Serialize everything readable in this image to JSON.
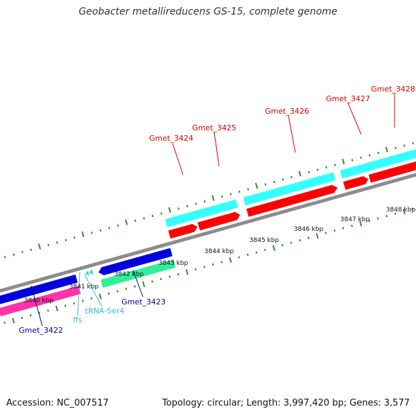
{
  "title": "Geobacter metallireducens GS-15, complete genome",
  "footer": {
    "accession": "Accession: NC_007517",
    "summary": "Topology: circular; Length: 3,997,420 bp; Genes: 3,577"
  },
  "colors": {
    "backbone": "#8c8c8c",
    "tick": "#2e8b2e",
    "gene_forward_fill": "#33ffff",
    "cds_forward_fill": "#ff0000",
    "gene_reverse_fill": "#0000dd",
    "cds_reverse_fill": "#ff33aa",
    "trna_fill": "#33ccff",
    "gene_3423_cds_fill": "#33ee99",
    "label_forward": "#dd0000",
    "label_reverse": "#000099",
    "label_rna": "#33bbdd"
  },
  "coordinate_labels": [
    "3840 kbp",
    "3841 kbp",
    "3842 kbp",
    "3843 kbp",
    "3844 kbp",
    "3845 kbp",
    "3846 kbp",
    "3847 kbp",
    "3848 kbp"
  ],
  "gene_labels": {
    "forward": [
      "Gmet_3424",
      "Gmet_3425",
      "Gmet_3426",
      "Gmet_3427",
      "Gmet_3428"
    ],
    "reverse": [
      "Gmet_3422",
      "Gmet_3423"
    ],
    "rna": [
      "ffs",
      "tRNA-Ser4"
    ]
  }
}
